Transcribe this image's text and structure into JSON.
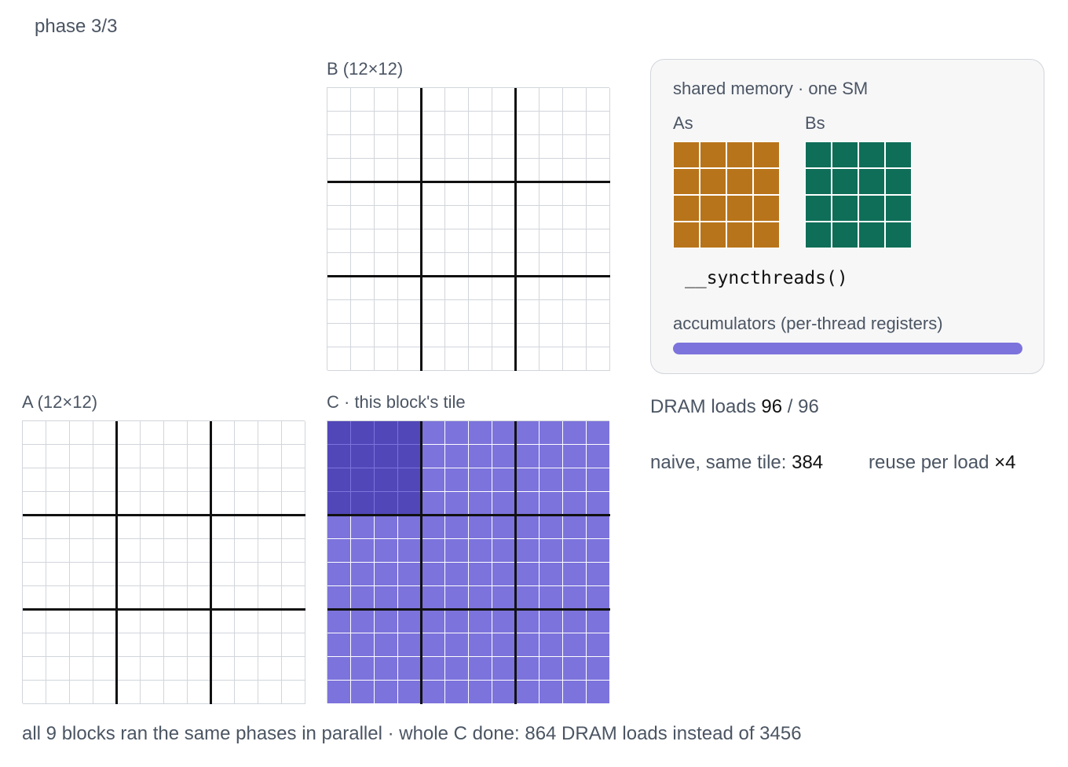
{
  "phase_label": "phase 3/3",
  "matrices": {
    "B": {
      "label": "B (12×12)",
      "size": 12,
      "tile": 4
    },
    "A": {
      "label": "A (12×12)",
      "size": 12,
      "tile": 4
    },
    "C": {
      "label": "C · this block's tile",
      "size": 12,
      "tile": 4,
      "active_tile": {
        "row": 0,
        "col": 0
      }
    }
  },
  "shared_memory": {
    "title": "shared memory · one SM",
    "As": {
      "label": "As",
      "size": 4
    },
    "Bs": {
      "label": "Bs",
      "size": 4
    },
    "sync_call": "__syncthreads()",
    "accumulators_label": "accumulators (per-thread registers)",
    "accumulators_progress": 1.0
  },
  "stats": {
    "dram_label": "DRAM loads ",
    "dram_loaded": "96",
    "dram_sep": " / ",
    "dram_total": "96",
    "naive_label": "naive, same tile: ",
    "naive_value": "384",
    "reuse_label": "reuse per load ",
    "reuse_value": "×4"
  },
  "footer": "all 9 blocks ran the same phases in parallel · whole C done: 864 DRAM loads instead of 3456",
  "colors": {
    "grid_line": "#d1d5db",
    "tile_line": "#111111",
    "c_fill": "#7c73dc",
    "c_active": "#5147b8",
    "as_fill": "#b8741a",
    "bs_fill": "#0f6e58",
    "accumulator": "#7c73dc"
  }
}
